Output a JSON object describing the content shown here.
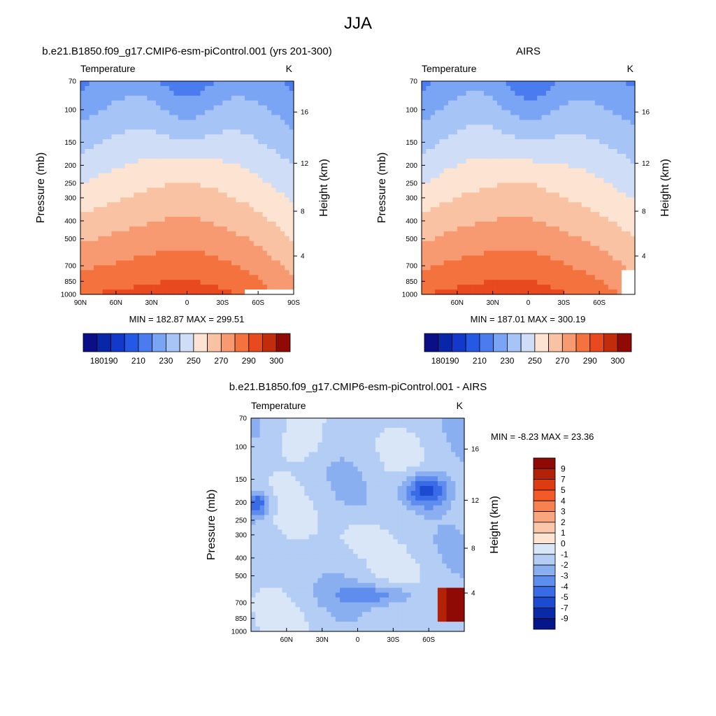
{
  "figure": {
    "title": "JJA"
  },
  "chart_data": [
    {
      "type": "heatmap",
      "title": "b.e21.B1850.f09_g17.CMIP6-esm-piControl.001 (yrs 201-300)",
      "variable": "Temperature",
      "units": "K",
      "ylabel": "Pressure (mb)",
      "ylabel_right": "Height (km)",
      "x_ticks": [
        "90N",
        "60N",
        "30N",
        "0",
        "30S",
        "60S",
        "90S"
      ],
      "y_ticks": [
        "70",
        "100",
        "150",
        "200",
        "250",
        "300",
        "400",
        "500",
        "700",
        "850",
        "1000"
      ],
      "y_right_ticks": [
        "16",
        "12",
        "8",
        "4"
      ],
      "min_label": "MIN = 182.87",
      "max_label": "MAX = 299.51",
      "stats": {
        "min": 182.87,
        "max": 299.51
      },
      "colorbar_labels": [
        "180",
        "190",
        "210",
        "230",
        "250",
        "270",
        "290",
        "300"
      ],
      "colorbar_levels": [
        180,
        185,
        190,
        200,
        210,
        220,
        230,
        240,
        250,
        260,
        270,
        280,
        290,
        295,
        300
      ]
    },
    {
      "type": "heatmap",
      "title": "AIRS",
      "variable": "Temperature",
      "units": "K",
      "ylabel": "Pressure (mb)",
      "ylabel_right": "Height (km)",
      "x_ticks": [
        "60N",
        "30N",
        "0",
        "30S",
        "60S"
      ],
      "y_ticks": [
        "70",
        "100",
        "150",
        "200",
        "250",
        "300",
        "400",
        "500",
        "700",
        "850",
        "1000"
      ],
      "y_right_ticks": [
        "16",
        "12",
        "8",
        "4"
      ],
      "min_label": "MIN = 187.01",
      "max_label": "MAX = 300.19",
      "stats": {
        "min": 187.01,
        "max": 300.19
      },
      "colorbar_labels": [
        "180",
        "190",
        "210",
        "230",
        "250",
        "270",
        "290",
        "300"
      ],
      "colorbar_levels": [
        180,
        185,
        190,
        200,
        210,
        220,
        230,
        240,
        250,
        260,
        270,
        280,
        290,
        295,
        300
      ]
    },
    {
      "type": "heatmap",
      "title": "b.e21.B1850.f09_g17.CMIP6-esm-piControl.001 - AIRS",
      "variable": "Temperature",
      "units": "K",
      "ylabel": "Pressure (mb)",
      "ylabel_right": "Height (km)",
      "x_ticks": [
        "60N",
        "30N",
        "0",
        "30S",
        "60S"
      ],
      "y_ticks": [
        "70",
        "100",
        "150",
        "200",
        "250",
        "300",
        "400",
        "500",
        "700",
        "850",
        "1000"
      ],
      "y_right_ticks": [
        "16",
        "12",
        "8",
        "4"
      ],
      "min_label": "MIN =  -8.23  MAX =  23.36",
      "stats": {
        "min": -8.23,
        "max": 23.36
      },
      "colorbar_labels": [
        "9",
        "7",
        "5",
        "4",
        "3",
        "2",
        "1",
        "0",
        "-1",
        "-2",
        "-3",
        "-4",
        "-5",
        "-7",
        "-9"
      ]
    }
  ]
}
